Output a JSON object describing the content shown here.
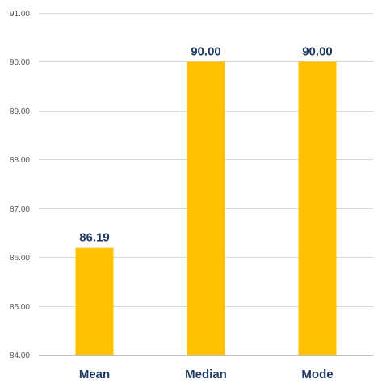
{
  "chart_data": {
    "type": "bar",
    "categories": [
      "Mean",
      "Median",
      "Mode"
    ],
    "values": [
      86.19,
      90.0,
      90.0
    ],
    "data_labels": [
      "86.19",
      "90.00",
      "90.00"
    ],
    "title": "",
    "xlabel": "",
    "ylabel": "",
    "ylim": [
      84,
      91
    ],
    "yticks": [
      84,
      85,
      86,
      87,
      88,
      89,
      90,
      91
    ],
    "ytick_labels": [
      "84.00",
      "85.00",
      "86.00",
      "87.00",
      "88.00",
      "89.00",
      "90.00",
      "91.00"
    ],
    "grid": true,
    "legend": "none",
    "bar_color": "#ffc000",
    "label_color": "#1f3864"
  }
}
